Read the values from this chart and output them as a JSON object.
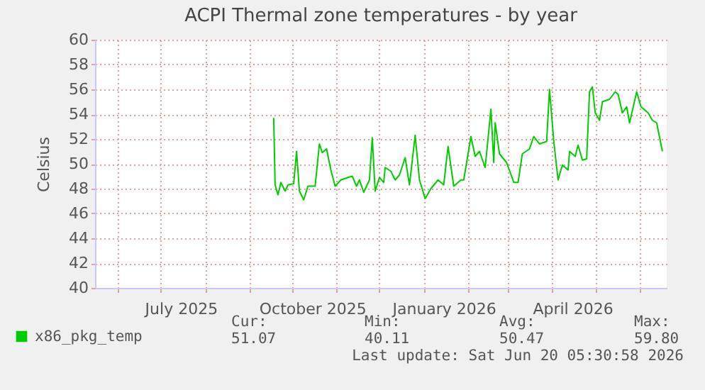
{
  "chart_data": {
    "type": "line",
    "title": "ACPI Thermal zone temperatures - by year",
    "ylabel": "Celsius",
    "x": [
      "2025-09-18",
      "2025-09-19",
      "2025-09-21",
      "2025-09-23",
      "2025-09-26",
      "2025-09-28",
      "2025-10-02",
      "2025-10-04",
      "2025-10-06",
      "2025-10-09",
      "2025-10-12",
      "2025-10-17",
      "2025-10-20",
      "2025-10-22",
      "2025-10-25",
      "2025-10-28",
      "2025-10-31",
      "2025-11-04",
      "2025-11-09",
      "2025-11-12",
      "2025-11-15",
      "2025-11-17",
      "2025-11-20",
      "2025-11-24",
      "2025-11-26",
      "2025-11-28",
      "2025-12-01",
      "2025-12-04",
      "2025-12-05",
      "2025-12-09",
      "2025-12-12",
      "2025-12-15",
      "2025-12-19",
      "2025-12-22",
      "2025-12-26",
      "2025-12-29",
      "2026-01-02",
      "2026-01-06",
      "2026-01-11",
      "2026-01-15",
      "2026-01-18",
      "2026-01-22",
      "2026-01-27",
      "2026-01-29",
      "2026-02-03",
      "2026-02-06",
      "2026-02-09",
      "2026-02-13",
      "2026-02-17",
      "2026-02-19",
      "2026-02-20",
      "2026-02-23",
      "2026-02-28",
      "2026-03-05",
      "2026-03-08",
      "2026-03-11",
      "2026-03-16",
      "2026-03-19",
      "2026-03-23",
      "2026-03-28",
      "2026-03-30",
      "2026-04-02",
      "2026-04-05",
      "2026-04-08",
      "2026-04-12",
      "2026-04-13",
      "2026-04-17",
      "2026-04-19",
      "2026-04-22",
      "2026-04-25",
      "2026-04-27",
      "2026-04-29",
      "2026-05-01",
      "2026-05-04",
      "2026-05-06",
      "2026-05-11",
      "2026-05-15",
      "2026-05-17",
      "2026-05-20",
      "2026-05-23",
      "2026-05-25",
      "2026-05-30",
      "2026-06-02",
      "2026-06-07",
      "2026-06-10",
      "2026-06-13",
      "2026-06-14",
      "2026-06-17"
    ],
    "series": [
      {
        "name": "x86_pkg_temp",
        "color": "#00cc00",
        "values": [
          53.7,
          48.3,
          47.5,
          48.5,
          47.8,
          48.3,
          48.4,
          51.0,
          47.8,
          47.1,
          48.2,
          48.2,
          51.6,
          50.9,
          51.2,
          49.5,
          48.2,
          48.7,
          48.9,
          49.0,
          48.2,
          48.7,
          47.7,
          48.7,
          52.1,
          47.8,
          48.9,
          48.5,
          49.7,
          49.4,
          48.7,
          49.1,
          50.5,
          48.3,
          52.3,
          48.7,
          47.2,
          48.0,
          48.7,
          48.3,
          51.4,
          48.2,
          48.7,
          48.7,
          52.2,
          50.6,
          51.0,
          49.7,
          54.4,
          50.1,
          53.3,
          50.8,
          50.1,
          48.5,
          48.5,
          50.8,
          51.2,
          52.2,
          51.6,
          51.8,
          56.0,
          51.8,
          48.7,
          49.9,
          49.5,
          51.0,
          50.6,
          51.5,
          50.3,
          50.4,
          55.8,
          56.2,
          54.1,
          53.5,
          55.0,
          55.2,
          55.8,
          55.6,
          54.1,
          54.6,
          53.3,
          55.8,
          54.6,
          54.1,
          53.5,
          53.3,
          52.7,
          51.0
        ]
      }
    ],
    "xlim": [
      "2025-05-16",
      "2026-06-20"
    ],
    "xticks": [
      {
        "value": "2025-06-01",
        "label": null
      },
      {
        "value": "2025-07-01",
        "label": null
      },
      {
        "value": "2025-07-15",
        "label": "July 2025"
      },
      {
        "value": "2025-08-01",
        "label": null
      },
      {
        "value": "2025-09-01",
        "label": null
      },
      {
        "value": "2025-10-01",
        "label": null
      },
      {
        "value": "2025-10-15",
        "label": "October 2025"
      },
      {
        "value": "2025-11-01",
        "label": null
      },
      {
        "value": "2025-12-01",
        "label": null
      },
      {
        "value": "2026-01-01",
        "label": null
      },
      {
        "value": "2026-01-15",
        "label": "January 2026"
      },
      {
        "value": "2026-02-01",
        "label": null
      },
      {
        "value": "2026-03-01",
        "label": null
      },
      {
        "value": "2026-04-01",
        "label": null
      },
      {
        "value": "2026-04-15",
        "label": "April 2026"
      },
      {
        "value": "2026-05-01",
        "label": null
      },
      {
        "value": "2026-06-01",
        "label": null
      }
    ],
    "ylim": [
      40,
      60
    ],
    "yticks": [
      40,
      42,
      44,
      46,
      48,
      50,
      52,
      54,
      56,
      58,
      60
    ],
    "grid": true,
    "legend": "bottom left",
    "annotations": [
      "Cur:",
      "Min:",
      "Avg:",
      "Max:",
      "51.07",
      "40.11",
      "50.47",
      "59.80",
      "Last update: Sat Jun 20 05:30:58 2026"
    ]
  }
}
